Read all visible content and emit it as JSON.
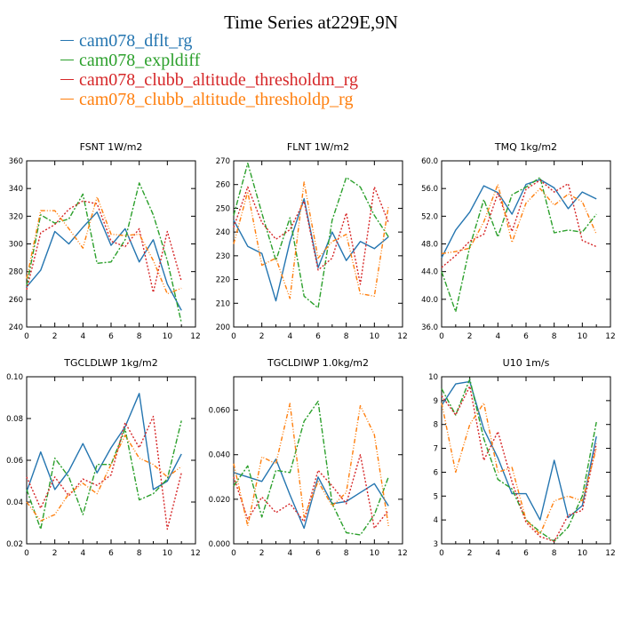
{
  "title": "Time Series at229E,9N",
  "colors": {
    "cam078_dflt_rg": "#2475b0",
    "cam078_expldiff": "#2ca02c",
    "cam078_clubb_altitude_thresholdm_rg": "#d62728",
    "cam078_clubb_altitude_thresholdp_rg": "#ff7f0e"
  },
  "legend": [
    {
      "label": "cam078_dflt_rg",
      "color": "#2475b0"
    },
    {
      "label": "cam078_expldiff",
      "color": "#2ca02c"
    },
    {
      "label": "cam078_clubb_altitude_thresholdm_rg",
      "color": "#d62728"
    },
    {
      "label": "cam078_clubb_altitude_thresholdp_rg",
      "color": "#ff7f0e"
    }
  ],
  "chart_data": [
    {
      "type": "line",
      "title": "FSNT  1W/m2",
      "x": [
        0,
        1,
        2,
        3,
        4,
        5,
        6,
        7,
        8,
        9,
        10,
        11
      ],
      "xlim": [
        0,
        12
      ],
      "xticks": [
        "0",
        "2",
        "4",
        "6",
        "8",
        "10",
        "12"
      ],
      "ylim": [
        240,
        360
      ],
      "yticks": [
        "240",
        "260",
        "280",
        "300",
        "320",
        "340",
        "360"
      ],
      "series": [
        {
          "name": "cam078_dflt_rg",
          "values": [
            269,
            281,
            309,
            300,
            312,
            323,
            299,
            311,
            287,
            303,
            271,
            252
          ]
        },
        {
          "name": "cam078_expldiff",
          "values": [
            270,
            321,
            315,
            318,
            336,
            286,
            287,
            303,
            344,
            321,
            288,
            243
          ]
        },
        {
          "name": "cam078_clubb_altitude_thresholdm_rg",
          "values": [
            267,
            308,
            314,
            325,
            331,
            329,
            302,
            298,
            311,
            265,
            309,
            273
          ]
        },
        {
          "name": "cam078_clubb_altitude_thresholdp_rg",
          "values": [
            275,
            324,
            324,
            311,
            297,
            334,
            307,
            306,
            307,
            288,
            264,
            268
          ]
        }
      ]
    },
    {
      "type": "line",
      "title": "FLNT  1W/m2",
      "x": [
        0,
        1,
        2,
        3,
        4,
        5,
        6,
        7,
        8,
        9,
        10,
        11
      ],
      "xlim": [
        0,
        12
      ],
      "xticks": [
        "0",
        "2",
        "4",
        "6",
        "8",
        "10",
        "12"
      ],
      "ylim": [
        200,
        270
      ],
      "yticks": [
        "200",
        "210",
        "220",
        "230",
        "240",
        "250",
        "260",
        "270"
      ],
      "series": [
        {
          "name": "cam078_dflt_rg",
          "values": [
            245,
            234,
            231,
            211,
            236,
            254,
            225,
            240,
            228,
            236,
            233,
            238
          ]
        },
        {
          "name": "cam078_expldiff",
          "values": [
            247,
            269,
            248,
            228,
            246,
            213,
            208,
            245,
            263,
            259,
            247,
            238
          ]
        },
        {
          "name": "cam078_clubb_altitude_thresholdm_rg",
          "values": [
            242,
            259,
            244,
            237,
            241,
            253,
            224,
            229,
            248,
            218,
            259,
            244
          ]
        },
        {
          "name": "cam078_clubb_altitude_thresholdp_rg",
          "values": [
            235,
            257,
            226,
            229,
            212,
            261,
            229,
            236,
            239,
            214,
            213,
            251
          ]
        }
      ]
    },
    {
      "type": "line",
      "title": "TMQ  1kg/m2",
      "x": [
        0,
        1,
        2,
        3,
        4,
        5,
        6,
        7,
        8,
        9,
        10,
        11
      ],
      "xlim": [
        0,
        12
      ],
      "xticks": [
        "0",
        "2",
        "4",
        "6",
        "8",
        "10",
        "12"
      ],
      "ylim": [
        36,
        60
      ],
      "yticks": [
        "36.0",
        "40.0",
        "44.0",
        "48.0",
        "52.0",
        "56.0",
        "60.0"
      ],
      "series": [
        {
          "name": "cam078_dflt_rg",
          "values": [
            46.0,
            50.0,
            52.6,
            56.4,
            55.4,
            52.3,
            56.6,
            57.3,
            56.1,
            53.1,
            55.5,
            54.5
          ]
        },
        {
          "name": "cam078_expldiff",
          "values": [
            44.0,
            38.2,
            47.6,
            54.4,
            49.0,
            55.1,
            56.2,
            57.6,
            49.6,
            50.0,
            49.7,
            52.3
          ]
        },
        {
          "name": "cam078_clubb_altitude_thresholdm_rg",
          "values": [
            44.6,
            46.3,
            48.4,
            49.4,
            55.3,
            49.8,
            55.9,
            57.2,
            55.5,
            56.7,
            48.5,
            47.6
          ]
        },
        {
          "name": "cam078_clubb_altitude_thresholdp_rg",
          "values": [
            46.6,
            46.9,
            47.4,
            51.2,
            56.6,
            48.2,
            53.9,
            56.0,
            53.6,
            55.2,
            54.1,
            49.4
          ]
        }
      ]
    },
    {
      "type": "line",
      "title": "TGCLDLWP  1kg/m2",
      "x": [
        0,
        1,
        2,
        3,
        4,
        5,
        6,
        7,
        8,
        9,
        10,
        11
      ],
      "xlim": [
        0,
        12
      ],
      "xticks": [
        "0",
        "2",
        "4",
        "6",
        "8",
        "10",
        "12"
      ],
      "ylim": [
        0.02,
        0.1
      ],
      "yticks": [
        "0.02",
        "0.04",
        "0.06",
        "0.08",
        "0.10"
      ],
      "series": [
        {
          "name": "cam078_dflt_rg",
          "values": [
            0.045,
            0.064,
            0.046,
            0.055,
            0.068,
            0.054,
            0.066,
            0.076,
            0.092,
            0.046,
            0.05,
            0.063
          ]
        },
        {
          "name": "cam078_expldiff",
          "values": [
            0.046,
            0.027,
            0.061,
            0.052,
            0.034,
            0.058,
            0.058,
            0.075,
            0.041,
            0.044,
            0.051,
            0.079
          ]
        },
        {
          "name": "cam078_clubb_altitude_thresholdm_rg",
          "values": [
            0.052,
            0.037,
            0.052,
            0.043,
            0.051,
            0.048,
            0.053,
            0.078,
            0.066,
            0.081,
            0.027,
            0.054
          ]
        },
        {
          "name": "cam078_clubb_altitude_thresholdp_rg",
          "values": [
            0.04,
            0.031,
            0.034,
            0.044,
            0.049,
            0.044,
            0.058,
            0.072,
            0.061,
            0.058,
            0.052,
            0.057
          ]
        }
      ]
    },
    {
      "type": "line",
      "title": "TGCLDIWP  1.0kg/m2",
      "x": [
        0,
        1,
        2,
        3,
        4,
        5,
        6,
        7,
        8,
        9,
        10,
        11
      ],
      "xlim": [
        0,
        12
      ],
      "xticks": [
        "0",
        "2",
        "4",
        "6",
        "8",
        "10",
        "12"
      ],
      "ylim": [
        0,
        0.075
      ],
      "yticks": [
        "0.000",
        "0.020",
        "0.040",
        "0.060"
      ],
      "series": [
        {
          "name": "cam078_dflt_rg",
          "values": [
            0.032,
            0.03,
            0.028,
            0.038,
            0.022,
            0.007,
            0.03,
            0.018,
            0.019,
            0.023,
            0.027,
            0.017
          ]
        },
        {
          "name": "cam078_expldiff",
          "values": [
            0.026,
            0.035,
            0.012,
            0.033,
            0.032,
            0.055,
            0.064,
            0.018,
            0.005,
            0.004,
            0.013,
            0.03
          ]
        },
        {
          "name": "cam078_clubb_altitude_thresholdm_rg",
          "values": [
            0.03,
            0.011,
            0.021,
            0.014,
            0.018,
            0.01,
            0.033,
            0.026,
            0.018,
            0.04,
            0.007,
            0.015
          ]
        },
        {
          "name": "cam078_clubb_altitude_thresholdp_rg",
          "values": [
            0.036,
            0.008,
            0.039,
            0.036,
            0.063,
            0.012,
            0.028,
            0.017,
            0.023,
            0.062,
            0.049,
            0.008
          ]
        }
      ]
    },
    {
      "type": "line",
      "title": "U10  1m/s",
      "x": [
        0,
        1,
        2,
        3,
        4,
        5,
        6,
        7,
        8,
        9,
        10,
        11
      ],
      "xlim": [
        0,
        12
      ],
      "xticks": [
        "0",
        "2",
        "4",
        "6",
        "8",
        "10",
        "12"
      ],
      "ylim": [
        3,
        10
      ],
      "yticks": [
        "3",
        "4",
        "5",
        "6",
        "7",
        "8",
        "9",
        "10"
      ],
      "series": [
        {
          "name": "cam078_dflt_rg",
          "values": [
            8.8,
            9.7,
            9.8,
            7.8,
            6.6,
            5.1,
            5.1,
            4.0,
            6.5,
            4.1,
            4.6,
            7.5
          ]
        },
        {
          "name": "cam078_expldiff",
          "values": [
            9.5,
            8.4,
            9.9,
            7.4,
            5.7,
            5.3,
            4.0,
            3.5,
            3.1,
            3.7,
            5.0,
            8.1
          ]
        },
        {
          "name": "cam078_clubb_altitude_thresholdm_rg",
          "values": [
            9.2,
            8.4,
            9.6,
            6.5,
            7.7,
            5.6,
            3.9,
            3.3,
            3.1,
            4.2,
            4.4,
            7.2
          ]
        },
        {
          "name": "cam078_clubb_altitude_thresholdp_rg",
          "values": [
            8.9,
            6.0,
            8.0,
            8.9,
            6.0,
            6.2,
            4.0,
            3.4,
            4.8,
            5.0,
            4.8,
            7.0
          ]
        }
      ]
    }
  ]
}
